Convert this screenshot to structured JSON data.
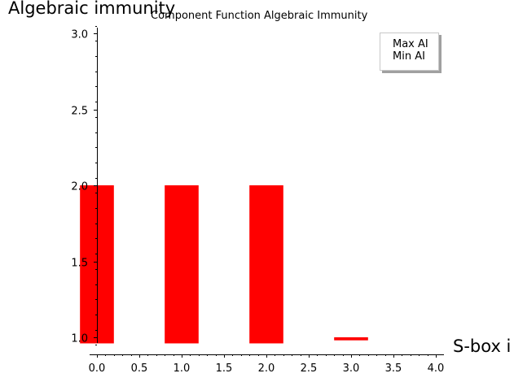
{
  "chart_data": {
    "type": "bar",
    "title": "Component Function Algebraic Immunity",
    "xlabel": "S-box i",
    "ylabel": "Algebraic immunity",
    "xlim": [
      -0.1,
      4.1
    ],
    "ylim": [
      0.93,
      3.05
    ],
    "bar_base": 0.96,
    "bar_width": 0.4,
    "x": [
      0,
      1,
      2,
      3
    ],
    "series": [
      {
        "name": "Max AI",
        "values": [
          2.0,
          2.0,
          2.0,
          1.0
        ],
        "color": "#ff0000"
      },
      {
        "name": "Min AI",
        "values": [
          2.0,
          2.0,
          2.0,
          1.0
        ],
        "color": "#ff0000"
      }
    ],
    "bar_ranges": [
      [
        0.96,
        2.0
      ],
      [
        0.96,
        2.0
      ],
      [
        0.96,
        2.0
      ],
      [
        0.98,
        1.0
      ]
    ],
    "xticks": [
      "0.0",
      "0.5",
      "1.0",
      "1.5",
      "2.0",
      "2.5",
      "3.0",
      "3.5",
      "4.0"
    ],
    "yticks": [
      "1.0",
      "1.5",
      "2.0",
      "2.5",
      "3.0"
    ],
    "legend": {
      "position": "top-right",
      "entries": [
        "Max AI",
        "Min AI"
      ]
    },
    "grid": false
  }
}
